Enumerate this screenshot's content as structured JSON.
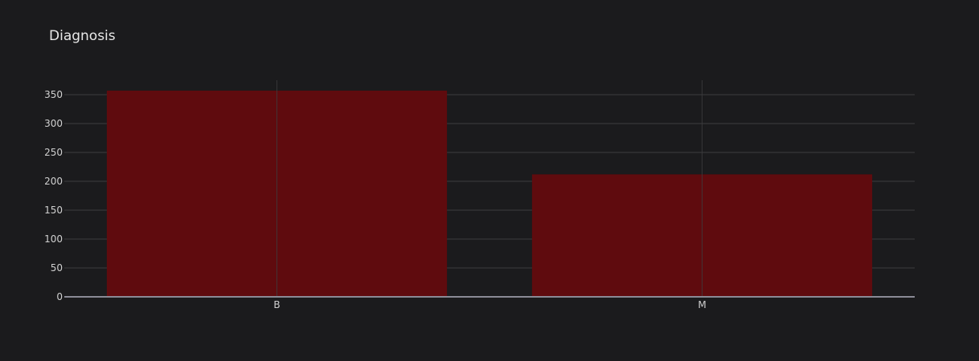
{
  "chart_data": {
    "type": "bar",
    "title": "Diagnosis",
    "xlabel": "",
    "ylabel": "",
    "categories": [
      "B",
      "M"
    ],
    "values": [
      357,
      212
    ],
    "ylim": [
      0,
      375
    ],
    "yticks": [
      0,
      50,
      100,
      150,
      200,
      250,
      300,
      350
    ],
    "grid": true,
    "legend": "none",
    "colors": {
      "background": "#1b1b1d",
      "bar": "#5f0b0e",
      "grid": "#3c3c3f",
      "axis_line": "#8a8a95"
    }
  }
}
